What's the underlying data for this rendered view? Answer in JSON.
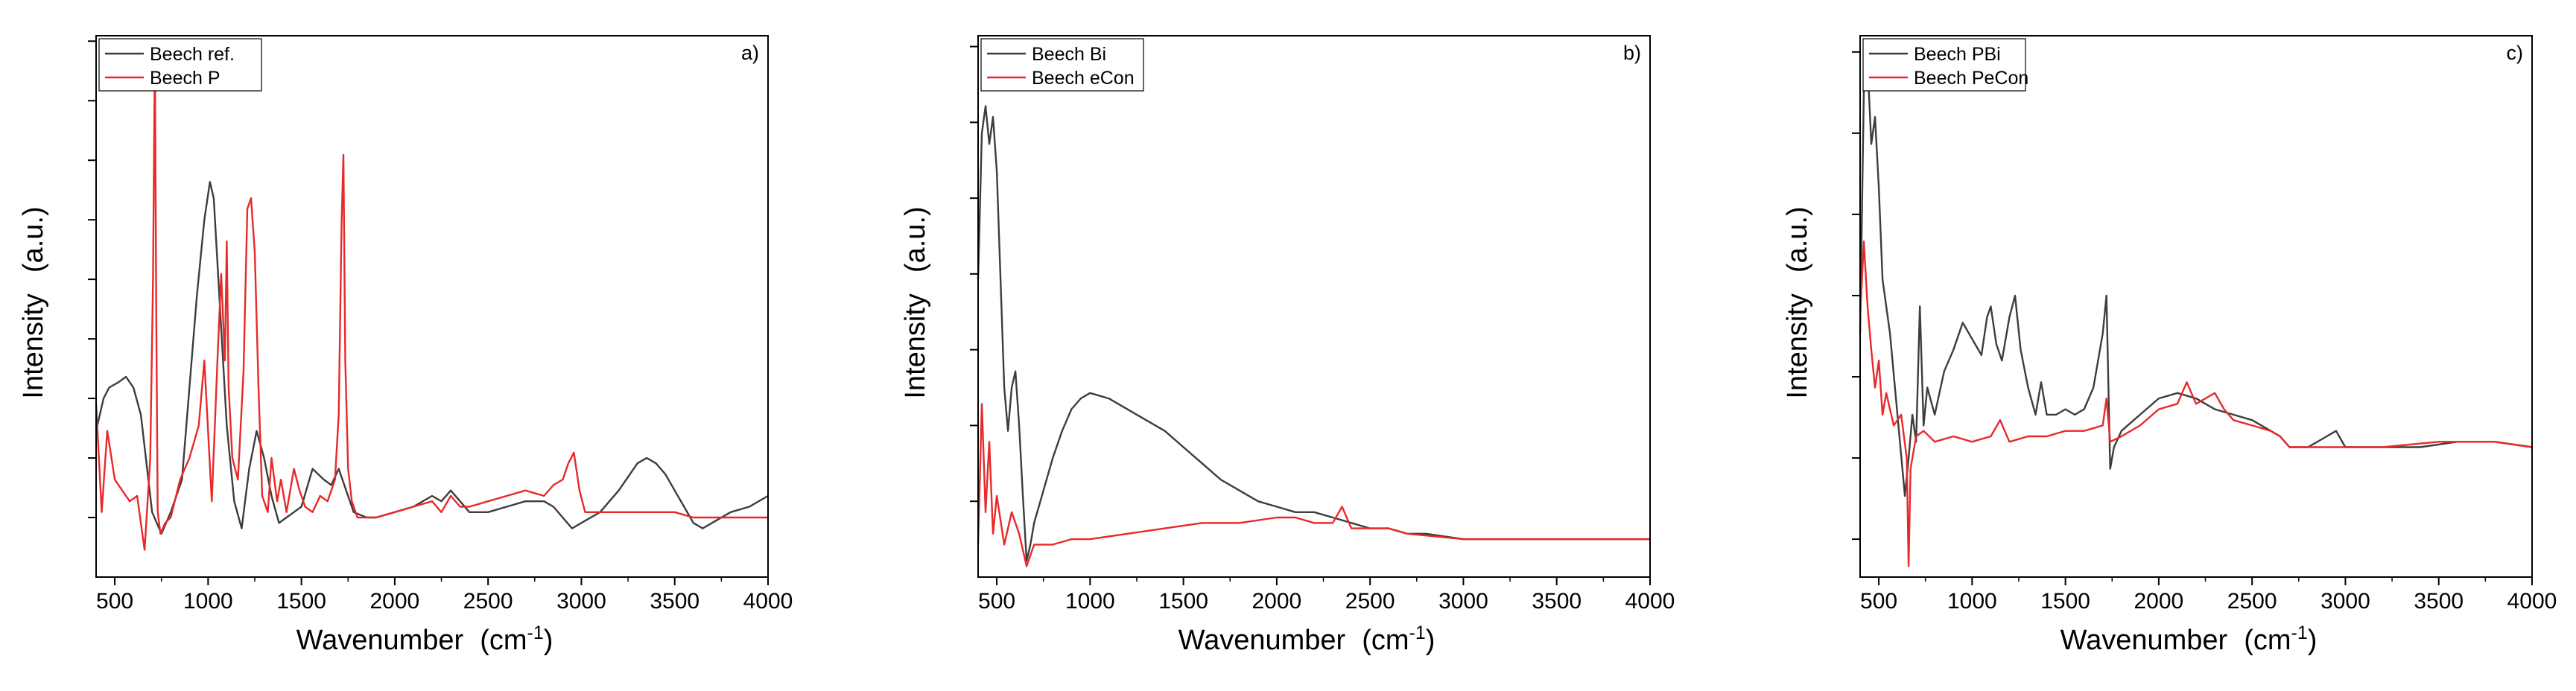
{
  "chart_data": [
    {
      "type": "line",
      "panel_label": "a)",
      "xlabel": "Wavenumber",
      "xlabel_unit": "(cm",
      "xlabel_unit_exp": "-1",
      "xlabel_unit_close": ")",
      "ylabel": "Intensity",
      "ylabel_unit": "(a.u.)",
      "xlim": [
        400,
        4000
      ],
      "ylim": [
        0,
        1
      ],
      "x_ticks": [
        500,
        1000,
        1500,
        2000,
        2500,
        3000,
        3500,
        4000
      ],
      "x_tick_labels": [
        "500",
        "1000",
        "1500",
        "2000",
        "2500",
        "3000",
        "3500",
        "4000"
      ],
      "y_ticks": [
        0.11,
        0.22,
        0.33,
        0.44,
        0.55,
        0.66,
        0.77,
        0.88,
        0.99
      ],
      "legend_position": "top-left",
      "series": [
        {
          "name": "Beech ref.",
          "color": "#3d3d3d",
          "x": [
            400,
            440,
            470,
            520,
            560,
            600,
            640,
            700,
            750,
            800,
            860,
            900,
            940,
            980,
            1010,
            1030,
            1060,
            1100,
            1140,
            1180,
            1220,
            1260,
            1300,
            1340,
            1380,
            1420,
            1460,
            1500,
            1560,
            1620,
            1660,
            1700,
            1740,
            1780,
            1850,
            1900,
            2000,
            2100,
            2200,
            2250,
            2300,
            2350,
            2400,
            2500,
            2600,
            2700,
            2800,
            2850,
            2900,
            2950,
            3000,
            3100,
            3200,
            3300,
            3350,
            3400,
            3450,
            3500,
            3550,
            3600,
            3650,
            3700,
            3800,
            3900,
            4000
          ],
          "y": [
            0.27,
            0.33,
            0.35,
            0.36,
            0.37,
            0.35,
            0.3,
            0.12,
            0.08,
            0.12,
            0.18,
            0.35,
            0.52,
            0.66,
            0.73,
            0.7,
            0.52,
            0.28,
            0.14,
            0.09,
            0.2,
            0.27,
            0.22,
            0.15,
            0.1,
            0.11,
            0.12,
            0.13,
            0.2,
            0.18,
            0.17,
            0.2,
            0.16,
            0.12,
            0.11,
            0.11,
            0.12,
            0.13,
            0.15,
            0.14,
            0.16,
            0.14,
            0.12,
            0.12,
            0.13,
            0.14,
            0.14,
            0.13,
            0.11,
            0.09,
            0.1,
            0.12,
            0.16,
            0.21,
            0.22,
            0.21,
            0.19,
            0.16,
            0.13,
            0.1,
            0.09,
            0.1,
            0.12,
            0.13,
            0.15
          ]
        },
        {
          "name": "Beech P",
          "color": "#e8292a",
          "x": [
            400,
            430,
            460,
            500,
            540,
            580,
            620,
            660,
            690,
            705,
            715,
            722,
            730,
            745,
            770,
            800,
            850,
            900,
            950,
            980,
            1000,
            1020,
            1050,
            1070,
            1090,
            1100,
            1110,
            1130,
            1160,
            1190,
            1210,
            1230,
            1250,
            1270,
            1290,
            1320,
            1340,
            1370,
            1390,
            1420,
            1460,
            1490,
            1520,
            1560,
            1600,
            1640,
            1680,
            1700,
            1715,
            1725,
            1735,
            1750,
            1770,
            1800,
            1900,
            2000,
            2100,
            2200,
            2250,
            2300,
            2350,
            2400,
            2500,
            2600,
            2700,
            2800,
            2850,
            2900,
            2930,
            2960,
            2990,
            3020,
            3100,
            3200,
            3300,
            3400,
            3500,
            3600,
            3700,
            3800,
            3900,
            4000
          ],
          "y": [
            0.32,
            0.12,
            0.27,
            0.18,
            0.16,
            0.14,
            0.15,
            0.05,
            0.22,
            0.55,
            0.97,
            0.5,
            0.12,
            0.08,
            0.1,
            0.11,
            0.18,
            0.22,
            0.28,
            0.4,
            0.27,
            0.14,
            0.4,
            0.56,
            0.4,
            0.62,
            0.35,
            0.22,
            0.18,
            0.38,
            0.68,
            0.7,
            0.6,
            0.35,
            0.15,
            0.12,
            0.22,
            0.14,
            0.18,
            0.12,
            0.2,
            0.16,
            0.13,
            0.12,
            0.15,
            0.14,
            0.18,
            0.3,
            0.65,
            0.78,
            0.4,
            0.2,
            0.14,
            0.11,
            0.11,
            0.12,
            0.13,
            0.14,
            0.12,
            0.15,
            0.13,
            0.13,
            0.14,
            0.15,
            0.16,
            0.15,
            0.17,
            0.18,
            0.21,
            0.23,
            0.16,
            0.12,
            0.12,
            0.12,
            0.12,
            0.12,
            0.12,
            0.11,
            0.11,
            0.11,
            0.11,
            0.11
          ]
        }
      ]
    },
    {
      "type": "line",
      "panel_label": "b)",
      "xlabel": "Wavenumber",
      "xlabel_unit": "(cm",
      "xlabel_unit_exp": "-1",
      "xlabel_unit_close": ")",
      "ylabel": "Intensity",
      "ylabel_unit": "(a.u.)",
      "xlim": [
        400,
        4000
      ],
      "ylim": [
        0,
        1
      ],
      "x_ticks": [
        500,
        1000,
        1500,
        2000,
        2500,
        3000,
        3500,
        4000
      ],
      "x_tick_labels": [
        "500",
        "1000",
        "1500",
        "2000",
        "2500",
        "3000",
        "3500",
        "4000"
      ],
      "y_ticks": [
        0.14,
        0.28,
        0.42,
        0.56,
        0.7,
        0.84,
        0.98
      ],
      "legend_position": "top-left",
      "series": [
        {
          "name": "Beech Bi",
          "color": "#3d3d3d",
          "x": [
            400,
            420,
            440,
            460,
            480,
            500,
            520,
            540,
            560,
            580,
            600,
            620,
            640,
            660,
            680,
            700,
            750,
            800,
            850,
            900,
            950,
            1000,
            1100,
            1200,
            1300,
            1400,
            1500,
            1600,
            1700,
            1800,
            1900,
            2000,
            2100,
            2200,
            2300,
            2400,
            2500,
            2600,
            2700,
            2800,
            3000,
            3200,
            3400,
            3600,
            3800,
            4000
          ],
          "y": [
            0.55,
            0.82,
            0.87,
            0.8,
            0.85,
            0.75,
            0.55,
            0.35,
            0.27,
            0.35,
            0.38,
            0.28,
            0.15,
            0.03,
            0.06,
            0.1,
            0.16,
            0.22,
            0.27,
            0.31,
            0.33,
            0.34,
            0.33,
            0.31,
            0.29,
            0.27,
            0.24,
            0.21,
            0.18,
            0.16,
            0.14,
            0.13,
            0.12,
            0.12,
            0.11,
            0.1,
            0.09,
            0.09,
            0.08,
            0.08,
            0.07,
            0.07,
            0.07,
            0.07,
            0.07,
            0.07
          ]
        },
        {
          "name": "Beech eCon",
          "color": "#e8292a",
          "x": [
            400,
            420,
            440,
            460,
            480,
            500,
            540,
            580,
            620,
            660,
            700,
            800,
            900,
            1000,
            1200,
            1400,
            1600,
            1800,
            2000,
            2100,
            2200,
            2300,
            2350,
            2400,
            2500,
            2600,
            2700,
            3000,
            3200,
            3500,
            3800,
            4000
          ],
          "y": [
            0.06,
            0.32,
            0.12,
            0.25,
            0.08,
            0.15,
            0.06,
            0.12,
            0.08,
            0.02,
            0.06,
            0.06,
            0.07,
            0.07,
            0.08,
            0.09,
            0.1,
            0.1,
            0.11,
            0.11,
            0.1,
            0.1,
            0.13,
            0.09,
            0.09,
            0.09,
            0.08,
            0.07,
            0.07,
            0.07,
            0.07,
            0.07
          ]
        }
      ]
    },
    {
      "type": "line",
      "panel_label": "c)",
      "xlabel": "Wavenumber",
      "xlabel_unit": "(cm",
      "xlabel_unit_exp": "-1",
      "xlabel_unit_close": ")",
      "ylabel": "Intensity",
      "ylabel_unit": "(a.u.)",
      "xlim": [
        400,
        4000
      ],
      "ylim": [
        0,
        1
      ],
      "x_ticks": [
        500,
        1000,
        1500,
        2000,
        2500,
        3000,
        3500,
        4000
      ],
      "x_tick_labels": [
        "500",
        "1000",
        "1500",
        "2000",
        "2500",
        "3000",
        "3500",
        "4000"
      ],
      "y_ticks": [
        0.07,
        0.22,
        0.37,
        0.52,
        0.67,
        0.82,
        0.97
      ],
      "legend_position": "top-left",
      "series": [
        {
          "name": "Beech PBi",
          "color": "#3d3d3d",
          "x": [
            400,
            420,
            440,
            460,
            480,
            500,
            520,
            560,
            600,
            640,
            660,
            680,
            700,
            720,
            740,
            760,
            800,
            850,
            900,
            950,
            1000,
            1050,
            1080,
            1100,
            1130,
            1160,
            1200,
            1230,
            1260,
            1300,
            1340,
            1370,
            1400,
            1450,
            1500,
            1550,
            1600,
            1650,
            1700,
            1720,
            1740,
            1760,
            1800,
            1900,
            2000,
            2100,
            2200,
            2300,
            2400,
            2500,
            2600,
            2650,
            2700,
            2800,
            2900,
            2950,
            3000,
            3200,
            3400,
            3600,
            3800,
            4000
          ],
          "y": [
            0.45,
            0.9,
            0.95,
            0.8,
            0.85,
            0.72,
            0.55,
            0.45,
            0.3,
            0.15,
            0.22,
            0.3,
            0.25,
            0.5,
            0.28,
            0.35,
            0.3,
            0.38,
            0.42,
            0.47,
            0.44,
            0.41,
            0.48,
            0.5,
            0.43,
            0.4,
            0.48,
            0.52,
            0.42,
            0.35,
            0.3,
            0.36,
            0.3,
            0.3,
            0.31,
            0.3,
            0.31,
            0.35,
            0.45,
            0.52,
            0.2,
            0.24,
            0.27,
            0.3,
            0.33,
            0.34,
            0.33,
            0.31,
            0.3,
            0.29,
            0.27,
            0.26,
            0.24,
            0.24,
            0.26,
            0.27,
            0.24,
            0.24,
            0.24,
            0.25,
            0.25,
            0.24
          ]
        },
        {
          "name": "Beech PeCon",
          "color": "#e8292a",
          "x": [
            400,
            420,
            440,
            460,
            480,
            500,
            520,
            540,
            580,
            620,
            650,
            660,
            670,
            700,
            740,
            800,
            900,
            1000,
            1100,
            1150,
            1200,
            1300,
            1400,
            1500,
            1600,
            1700,
            1720,
            1740,
            1800,
            1900,
            2000,
            2100,
            2150,
            2200,
            2300,
            2350,
            2400,
            2500,
            2600,
            2650,
            2700,
            2800,
            3000,
            3200,
            3500,
            3800,
            4000
          ],
          "y": [
            0.48,
            0.62,
            0.5,
            0.42,
            0.35,
            0.4,
            0.3,
            0.34,
            0.28,
            0.3,
            0.22,
            0.02,
            0.2,
            0.26,
            0.27,
            0.25,
            0.26,
            0.25,
            0.26,
            0.29,
            0.25,
            0.26,
            0.26,
            0.27,
            0.27,
            0.28,
            0.33,
            0.25,
            0.26,
            0.28,
            0.31,
            0.32,
            0.36,
            0.32,
            0.34,
            0.31,
            0.29,
            0.28,
            0.27,
            0.26,
            0.24,
            0.24,
            0.24,
            0.24,
            0.25,
            0.25,
            0.24
          ]
        }
      ]
    }
  ]
}
